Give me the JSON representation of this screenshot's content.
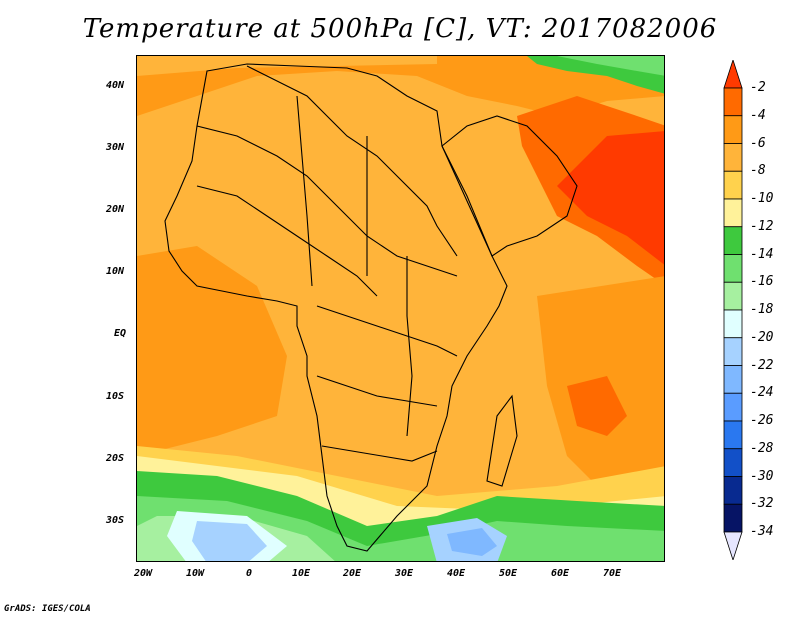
{
  "title": "Temperature at 500hPa [C], VT: 2017082006",
  "credit": "GrADS: IGES/COLA",
  "map": {
    "lat_labels": [
      "40N",
      "30N",
      "20N",
      "10N",
      "EQ",
      "10S",
      "20S",
      "30S"
    ],
    "lon_labels": [
      "20W",
      "10W",
      "0",
      "10E",
      "20E",
      "30E",
      "40E",
      "50E",
      "60E",
      "70E"
    ]
  },
  "colorbar": {
    "labels": [
      "-2",
      "-4",
      "-6",
      "-8",
      "-10",
      "-12",
      "-14",
      "-16",
      "-18",
      "-20",
      "-22",
      "-24",
      "-26",
      "-28",
      "-30",
      "-32",
      "-34"
    ],
    "colors": [
      "#ff3a00",
      "#ff6a00",
      "#ff9a16",
      "#ffb43a",
      "#ffd24d",
      "#fff29a",
      "#3ec93e",
      "#6fe06f",
      "#a6f0a0",
      "#e0ffff",
      "#a6d2ff",
      "#7fb8ff",
      "#5a9cff",
      "#2a78f0",
      "#1250c8",
      "#082a90",
      "#061465"
    ]
  }
}
